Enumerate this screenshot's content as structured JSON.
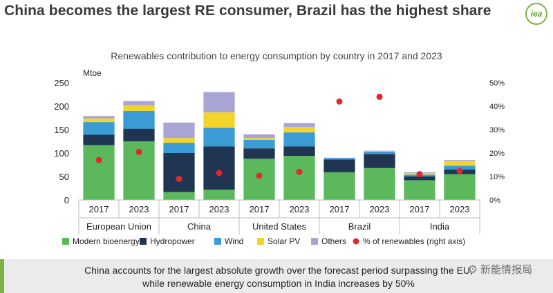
{
  "slide": {
    "title": "China becomes the largest RE consumer, Brazil has the highest share",
    "logo_text": "iea",
    "footer_line1": "China accounts for the largest absolute growth over the forecast period surpassing the EU,",
    "footer_line2": "while renewable energy consumption in India increases by 50%",
    "watermark": "新能情报局"
  },
  "chart_data": {
    "type": "bar",
    "stacked": true,
    "title": "Renewables contribution to energy consumption by country in 2017 and 2023",
    "ylabel": "Mtoe",
    "ylim": [
      0,
      250
    ],
    "yticks": [
      0,
      50,
      100,
      150,
      200,
      250
    ],
    "y2lim": [
      0,
      50
    ],
    "y2ticks": [
      "0%",
      "10%",
      "20%",
      "30%",
      "40%",
      "50%"
    ],
    "groups": [
      "European Union",
      "China",
      "United States",
      "Brazil",
      "India"
    ],
    "categories": [
      "2017",
      "2023",
      "2017",
      "2023",
      "2017",
      "2023",
      "2017",
      "2023",
      "2017",
      "2023"
    ],
    "series": [
      {
        "name": "Modern bioenergy",
        "color": "#5cb85c",
        "values": [
          117,
          125,
          17,
          22,
          88,
          94,
          59,
          68,
          42,
          55
        ]
      },
      {
        "name": "Hydropower",
        "color": "#1f3552",
        "values": [
          22,
          27,
          83,
          92,
          22,
          20,
          27,
          30,
          8,
          10
        ]
      },
      {
        "name": "Wind",
        "color": "#3a9bd5",
        "values": [
          27,
          38,
          22,
          40,
          18,
          30,
          3,
          5,
          4,
          8
        ]
      },
      {
        "name": "Solar PV",
        "color": "#f2d42b",
        "values": [
          8,
          12,
          10,
          33,
          4,
          12,
          0,
          1,
          3,
          10
        ]
      },
      {
        "name": "Others",
        "color": "#a8a4d4",
        "values": [
          5,
          9,
          33,
          43,
          8,
          8,
          1,
          1,
          2,
          2
        ]
      }
    ],
    "line_series": {
      "name": "% of renewables (right axis)",
      "color": "#e0282e",
      "axis": "right",
      "values": [
        17,
        20.5,
        9,
        11.5,
        10.3,
        12,
        42,
        44,
        11,
        12.3
      ]
    },
    "legend": [
      "Modern bioenergy",
      "Hydropower",
      "Wind",
      "Solar PV",
      "Others",
      "% of renewables (right axis)"
    ],
    "legend_position": "bottom"
  }
}
